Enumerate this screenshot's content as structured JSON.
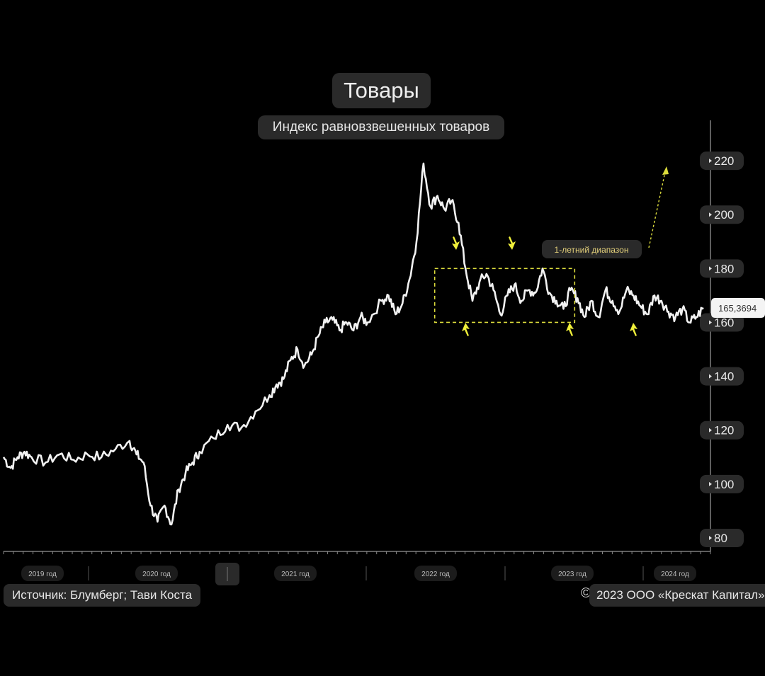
{
  "chart_data": {
    "type": "line",
    "title": "Товары",
    "subtitle": "Индекс равновзвешенных товаров",
    "yticks": [
      "220",
      "200",
      "180",
      "160",
      "140",
      "120",
      "100",
      "80"
    ],
    "ytick_values": [
      220,
      200,
      180,
      160,
      140,
      120,
      100,
      80
    ],
    "ylim": [
      75,
      235
    ],
    "xticks": [
      "2019 год",
      "2020 год",
      "2021 год",
      "2022 год",
      "2023 год",
      "2024 год"
    ],
    "xlim": [
      2019.0,
      2024.05
    ],
    "last_value_label": "165,3694",
    "range_label": "1-летний диапазон",
    "range_box": {
      "x_start": 2022.08,
      "x_end": 2023.08,
      "y_low": 160,
      "y_high": 180
    },
    "x": [
      2019.0,
      2019.05,
      2019.1,
      2019.15,
      2019.2,
      2019.3,
      2019.4,
      2019.5,
      2019.6,
      2019.7,
      2019.8,
      2019.9,
      2019.95,
      2020.0,
      2020.05,
      2020.1,
      2020.15,
      2020.2,
      2020.25,
      2020.3,
      2020.35,
      2020.4,
      2020.5,
      2020.6,
      2020.7,
      2020.8,
      2020.9,
      2020.95,
      2021.0,
      2021.05,
      2021.1,
      2021.15,
      2021.2,
      2021.25,
      2021.3,
      2021.35,
      2021.4,
      2021.45,
      2021.5,
      2021.55,
      2021.6,
      2021.7,
      2021.75,
      2021.8,
      2021.85,
      2021.9,
      2021.95,
      2022.0,
      2022.05,
      2022.1,
      2022.15,
      2022.2,
      2022.25,
      2022.3,
      2022.35,
      2022.4,
      2022.45,
      2022.5,
      2022.55,
      2022.6,
      2022.65,
      2022.7,
      2022.75,
      2022.8,
      2022.85,
      2022.9,
      2022.95,
      2023.0,
      2023.05,
      2023.1,
      2023.15,
      2023.2,
      2023.25,
      2023.3,
      2023.35,
      2023.4,
      2023.45,
      2023.5,
      2023.55,
      2023.6,
      2023.65,
      2023.7,
      2023.75,
      2023.8,
      2023.85,
      2023.9,
      2023.95,
      2024.0
    ],
    "y": [
      110,
      106,
      110,
      112,
      110,
      108,
      111,
      109,
      111,
      110,
      113,
      116,
      111,
      108,
      92,
      86,
      92,
      85,
      98,
      104,
      108,
      112,
      117,
      122,
      121,
      127,
      133,
      137,
      139,
      146,
      150,
      144,
      148,
      155,
      160,
      161,
      157,
      160,
      157,
      162,
      160,
      168,
      170,
      163,
      167,
      176,
      190,
      219,
      203,
      207,
      202,
      205,
      197,
      180,
      168,
      175,
      178,
      172,
      163,
      170,
      174,
      168,
      172,
      171,
      180,
      171,
      168,
      165,
      172,
      169,
      162,
      168,
      162,
      172,
      168,
      164,
      172,
      170,
      166,
      163,
      170,
      168,
      164,
      162,
      165,
      160,
      162,
      165.37
    ]
  },
  "colors": {
    "background": "#000000",
    "line": "#f2f2f2",
    "annotation": "#dcdc3c",
    "arrow": "#f0f03a",
    "axis": "#bbbbbb",
    "pill": "#2a2a2a"
  },
  "footer": {
    "source": "Источник: Блумберг; Тави Коста",
    "copyright_symbol": "©",
    "copyright": "2023 ООО «Крескат Капитал»"
  }
}
